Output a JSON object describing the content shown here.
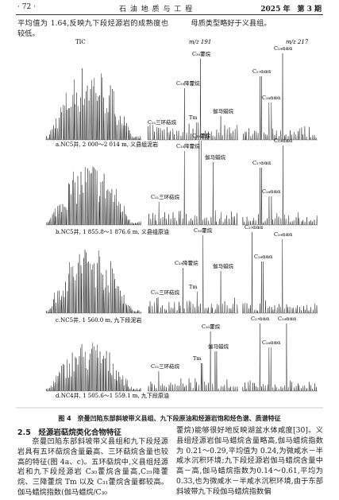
{
  "header": {
    "page": "· 72 ·",
    "journal": "石 油 地 质 与 工 程",
    "issue": "2025 年　第 3 期"
  },
  "top_text": {
    "left": "平均值为 1.64,反映九下段烃源岩的成熟度也较低。",
    "right": "母质类型略好于义县组。"
  },
  "figure": {
    "columns": [
      "TIC",
      "m/z 191",
      "m/z 217"
    ],
    "rows": [
      {
        "caption": "a.NC5井, 2 000～2 014 m, 义县组泥岩",
        "m191_labels": [
          "C₃₀藿烷",
          "C₂₉降藿烷",
          "伽马蜡烷",
          "Tm",
          "C₂₁三环萜烷"
        ],
        "m217_labels": [
          "C₂₉ααα",
          "C₂₇ααα",
          "C₂₈ααα"
        ]
      },
      {
        "caption": "b.NC5井, 1 855.8～1 876.6 m, 义县组原油",
        "m191_labels": [
          "C₃₀藿烷",
          "C₂₉降藿烷",
          "伽马蜡烷",
          "C₂₁三环萜烷"
        ],
        "m217_labels": [
          "C₂₉ααα",
          "C₂₇ααα",
          "C₂₈ααα"
        ]
      },
      {
        "caption": "c.NC5井, 1 560.0 m, 九下段泥岩",
        "m191_labels": [
          "C₃₀藿烷",
          "C₂₉降藿烷",
          "伽马蜡烷",
          "Tm",
          "C₂₁三环萜烷"
        ],
        "m217_labels": [
          "C₂₇ααα",
          "C₂₉ααα",
          "C₂₈ααα"
        ]
      },
      {
        "caption": "d.NC4井, 1 505.6～1 559.1 m, 九下段原油",
        "m191_labels": [
          "C₃₀藿烷",
          "伽马蜡烷",
          "Tm",
          "C₂₁三环萜烷"
        ],
        "m217_labels": [
          "C₂₇ααα",
          "C₂₉ααα",
          "C₂₈ααα"
        ]
      }
    ],
    "caption": "图 4　奈曼凹陷东部斜坡带义县组、九下段原油和烃源岩饱和烃色谱、质谱特征"
  },
  "section": {
    "heading": "2.5　烃源岩萜烷类化合物特征",
    "left": "奈曼凹陷东部斜坡带义县组和九下段烃源岩具有五环萜烷含量最高、三环萜烷含量也较高的特征(图 4a、c)。五环萜烷中,义县组烃源岩和九下段烃源岩 C₃₀藿烷含量高,C₂₉降藿烷、三降藿烷 Tm 以及 C₃₁藿烷含量都较高。伽马蜡烷指数(伽马蜡烷/C₃₀",
    "right": "藿烷)能够很好地反映湖盆水体咸度[30]。义县组烃源岩伽马蜡烷含量略高,伽马蜡烷指数为 0.21～0.29,平均值为 0.24,为微咸水－半咸水沉积环境;九下段烃源岩伽马蜡烷含量中高－高,伽马蜡烷指数为0.14～0.61,平均为 0.33,也为微咸水－半咸水沉积环境,由于东部斜坡带九下段伽马蜡烷指数偏"
  }
}
